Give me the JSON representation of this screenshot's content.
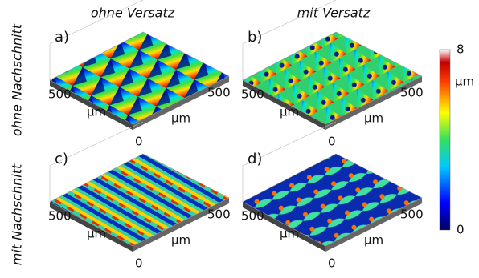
{
  "column_headers": [
    "ohne Versatz",
    "mit Versatz"
  ],
  "row_headers": [
    "ohne Nachschnitt",
    "mit Nachschnitt"
  ],
  "panels": [
    {
      "label": "a)",
      "left_tick": "500",
      "left_unit": "µm",
      "right_tick": "500",
      "right_unit": "µm",
      "origin": "0"
    },
    {
      "label": "b)",
      "left_tick": "500",
      "left_unit": "µm",
      "right_tick": "500",
      "right_unit": "µm",
      "origin": "0"
    },
    {
      "label": "c)",
      "left_tick": "500",
      "left_unit": "µm",
      "right_tick": "500",
      "right_unit": "µm",
      "origin": "0"
    },
    {
      "label": "d)",
      "left_tick": "500",
      "left_unit": "µm",
      "right_tick": "500",
      "right_unit": "µm",
      "origin": "0"
    }
  ],
  "colorbar": {
    "max": 8,
    "unit": "µm",
    "min": 0
  }
}
